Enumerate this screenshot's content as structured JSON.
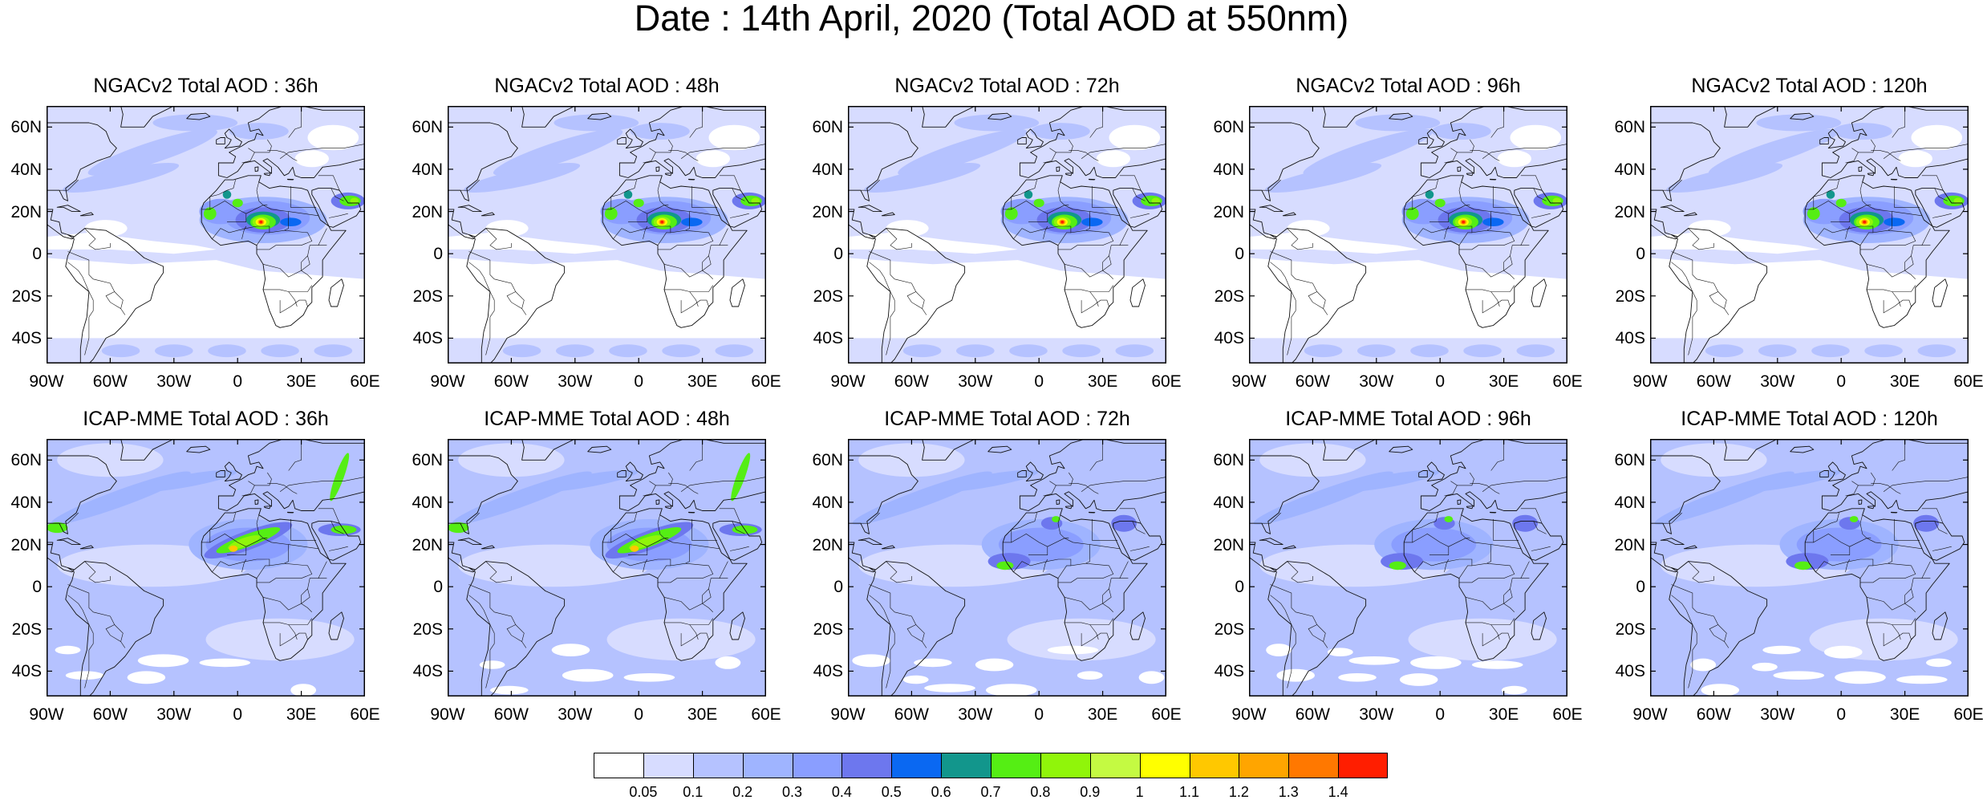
{
  "title": "Date : 14th April, 2020 (Total AOD at 550nm)",
  "panels": [
    {
      "title": "NGACv2 Total AOD : 36h",
      "model": "NGACv2",
      "lead": "36h"
    },
    {
      "title": "NGACv2 Total AOD : 48h",
      "model": "NGACv2",
      "lead": "48h"
    },
    {
      "title": "NGACv2 Total AOD : 72h",
      "model": "NGACv2",
      "lead": "72h"
    },
    {
      "title": "NGACv2 Total AOD : 96h",
      "model": "NGACv2",
      "lead": "96h"
    },
    {
      "title": "NGACv2 Total AOD : 120h",
      "model": "NGACv2",
      "lead": "120h"
    },
    {
      "title": "ICAP-MME Total AOD : 36h",
      "model": "ICAP-MME",
      "lead": "36h"
    },
    {
      "title": "ICAP-MME Total AOD : 48h",
      "model": "ICAP-MME",
      "lead": "48h"
    },
    {
      "title": "ICAP-MME Total AOD : 72h",
      "model": "ICAP-MME",
      "lead": "72h"
    },
    {
      "title": "ICAP-MME Total AOD : 96h",
      "model": "ICAP-MME",
      "lead": "96h"
    },
    {
      "title": "ICAP-MME Total AOD : 120h",
      "model": "ICAP-MME",
      "lead": "120h"
    }
  ],
  "axes": {
    "lat_labels": [
      "60N",
      "40N",
      "20N",
      "0",
      "20S",
      "40S"
    ],
    "lon_labels": [
      "90W",
      "60W",
      "30W",
      "0",
      "30E",
      "60E"
    ]
  },
  "colorbar": {
    "colors": [
      "#ffffff",
      "#d7dcff",
      "#b5c2ff",
      "#9fb4ff",
      "#8a9eff",
      "#6d77ee",
      "#0a68f2",
      "#12968c",
      "#55ee14",
      "#90f50a",
      "#c4fa42",
      "#ffff00",
      "#ffc800",
      "#ffa500",
      "#ff7800",
      "#ff1e00"
    ],
    "labels": [
      "0.05",
      "0.1",
      "0.2",
      "0.3",
      "0.4",
      "0.5",
      "0.6",
      "0.7",
      "0.8",
      "0.9",
      "1",
      "1.1",
      "1.2",
      "1.3",
      "1.4"
    ]
  }
}
